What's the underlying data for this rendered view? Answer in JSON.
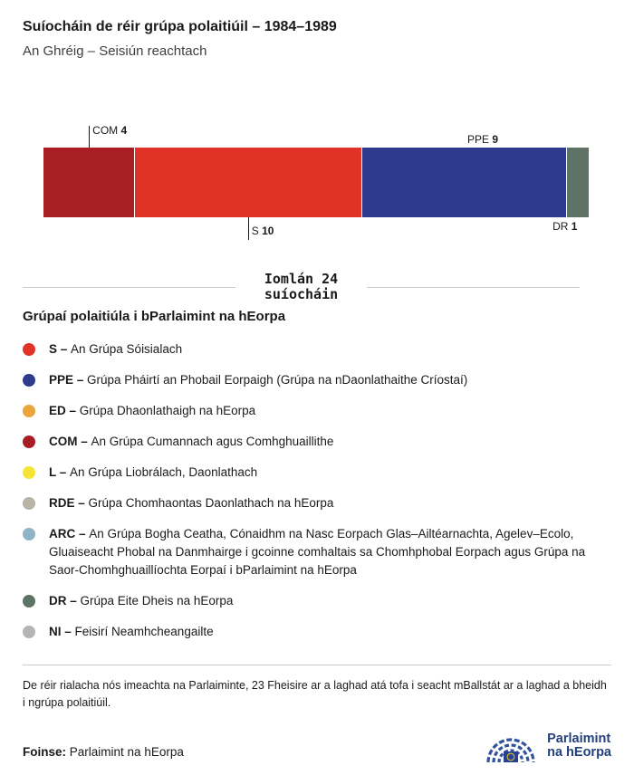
{
  "header": {
    "title": "Suíocháin de réir grúpa polaitiúil – 1984–1989",
    "subtitle": "An Ghréig – Seisiún reachtach"
  },
  "chart_data": {
    "type": "bar",
    "orientation": "horizontal-stacked",
    "title": "Suíocháin de réir grúpa polaitiúil – 1984–1989",
    "subtitle": "An Ghréig – Seisiún reachtach",
    "total": 24,
    "total_label_line1": "Iomlán 24",
    "total_label_line2": "suíocháin",
    "segments": [
      {
        "group": "COM",
        "seats": 4,
        "color": "#a81e23",
        "label_side": "top",
        "line": true,
        "align": "start"
      },
      {
        "group": "S",
        "seats": 10,
        "color": "#e03227",
        "label_side": "bottom",
        "line": true,
        "align": "start"
      },
      {
        "group": "PPE",
        "seats": 9,
        "color": "#2d3a8d",
        "label_side": "top",
        "line": false,
        "align": "start"
      },
      {
        "group": "DR",
        "seats": 1,
        "color": "#5e7266",
        "label_side": "bottom",
        "line": false,
        "align": "end"
      }
    ]
  },
  "legend": {
    "heading": "Grúpaí polaitiúla i bParlaimint na hEorpa",
    "items": [
      {
        "abbr": "S",
        "name": "An Grúpa Sóisialach",
        "color": "#e03227"
      },
      {
        "abbr": "PPE",
        "name": "Grúpa Pháirtí an Phobail Eorpaigh (Grúpa na nDaonlathaithe Críostaí)",
        "color": "#2d3a8d"
      },
      {
        "abbr": "ED",
        "name": "Grúpa Dhaonlathaigh na hEorpa",
        "color": "#eaa53c"
      },
      {
        "abbr": "COM",
        "name": "An Grúpa Cumannach agus Comhghuaillithe",
        "color": "#a81e23"
      },
      {
        "abbr": "L",
        "name": "An Grúpa Liobrálach, Daonlathach",
        "color": "#f5e434"
      },
      {
        "abbr": "RDE",
        "name": "Grúpa Chomhaontas Daonlathach na hEorpa",
        "color": "#b9b3a8"
      },
      {
        "abbr": "ARC",
        "name": "An Grúpa Bogha Ceatha, Cónaidhm na Nasc Eorpach Glas–Ailtéarnachta, Agelev–Ecolo, Gluaiseacht Phobal na Danmhairge i gcoinne comhaltais sa Chomhphobal Eorpach agus Grúpa na Saor-Chomhghuaillíochta Eorpaí i bParlaimint na hEorpa",
        "color": "#90b4c8"
      },
      {
        "abbr": "DR",
        "name": "Grúpa Eite Dheis na hEorpa",
        "color": "#5e7266"
      },
      {
        "abbr": "NI",
        "name": "Feisirí Neamhcheangailte",
        "color": "#b5b5b5"
      }
    ]
  },
  "footnote": "De réir rialacha nós imeachta na Parlaiminte, 23 Fheisire ar a laghad atá tofa i seacht mBallstát ar a laghad a bheidh i ngrúpa polaitiúil.",
  "source": {
    "label": "Foinse:",
    "text": "Parlaimint na hEorpa"
  },
  "logo": {
    "line1": "Parlaimint",
    "line2": "na hEorpa"
  }
}
